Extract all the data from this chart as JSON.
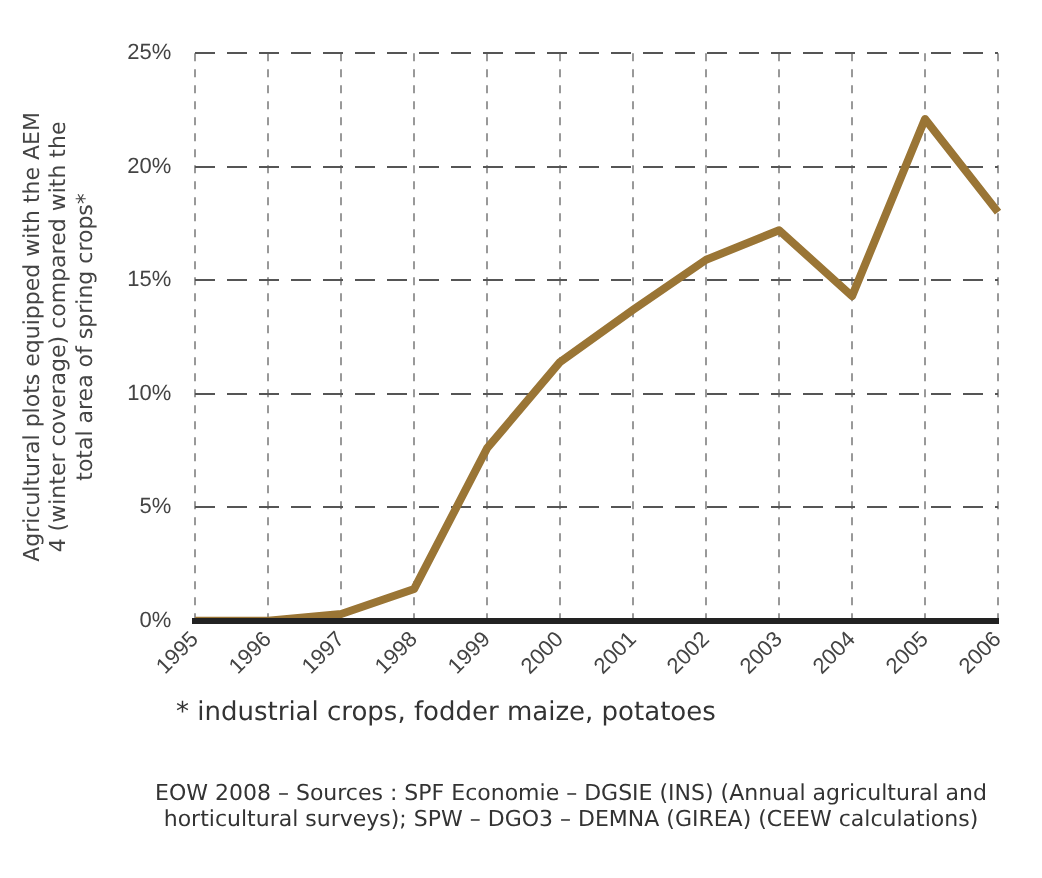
{
  "chart_data": {
    "type": "line",
    "ylabel": "Agricultural plots equipped with the AEM 4 (winter coverage) compared with the total area of spring crops*",
    "categories": [
      "1995",
      "1996",
      "1997",
      "1998",
      "1999",
      "2000",
      "2001",
      "2002",
      "2003",
      "2004",
      "2005",
      "2006"
    ],
    "series": [
      {
        "color": "#9a7535",
        "values": [
          0,
          0,
          0.3,
          1.4,
          7.6,
          11.4,
          13.7,
          15.9,
          17.2,
          14.3,
          22.1,
          18.0
        ]
      }
    ],
    "ylim": [
      0,
      25
    ],
    "yticks": [
      {
        "value": 0,
        "label": "0%"
      },
      {
        "value": 5,
        "label": "5%"
      },
      {
        "value": 10,
        "label": "10%"
      },
      {
        "value": 15,
        "label": "15%"
      },
      {
        "value": 20,
        "label": "20%"
      },
      {
        "value": 25,
        "label": "25%"
      }
    ],
    "grid": true,
    "legend": false,
    "marker": "none",
    "line_style": "solid",
    "annotations": [
      "* industrial crops, fodder maize, potatoes",
      "EOW 2008 – Sources : SPF Economie – DGSIE (INS) (Annual agricultural and horticultural surveys); SPW – DGO3 – DEMNA (GIREA) (CEEW calculations)"
    ]
  }
}
